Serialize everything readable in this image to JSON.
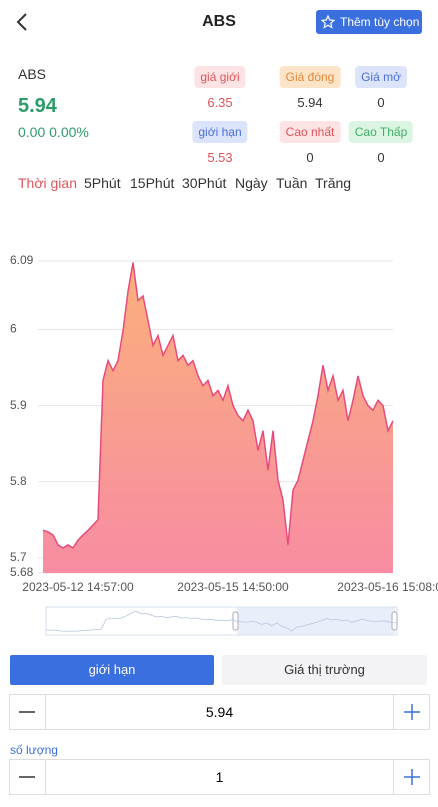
{
  "header": {
    "title": "ABS",
    "button": "Thêm tùy chọn"
  },
  "quote": {
    "symbol": "ABS",
    "last": 5.94,
    "change": "0.00 0.00%"
  },
  "stats": [
    {
      "label": "giá giới",
      "value": 6.35
    },
    {
      "label": "Giá đóng",
      "value": 5.94
    },
    {
      "label": "Giá mở",
      "value": 0
    },
    {
      "label": "giới hạn",
      "value": 5.53
    },
    {
      "label": "Cao nhất",
      "value": 0
    },
    {
      "label": "Cao Thấp",
      "value": 0
    }
  ],
  "timeframes": [
    "Thời gian",
    "5Phút",
    "15Phút",
    "30Phút",
    "Ngày",
    "Tuần",
    "Trăng"
  ],
  "chart_data": {
    "type": "area",
    "color": "#e94a7c",
    "categories": [
      null,
      null,
      null,
      null,
      null,
      null,
      null,
      "2023-05-12 14:57:00",
      null,
      null,
      null,
      null,
      null,
      null,
      null,
      null,
      null,
      null,
      null,
      null,
      null,
      null,
      null,
      null,
      null,
      null,
      null,
      null,
      null,
      null,
      null,
      null,
      null,
      null,
      null,
      null,
      null,
      null,
      "2023-05-15 14:50:00",
      null,
      null,
      null,
      null,
      null,
      null,
      null,
      null,
      null,
      null,
      null,
      null,
      null,
      null,
      null,
      null,
      null,
      null,
      null,
      null,
      null,
      null,
      null,
      null,
      null,
      null,
      null,
      null,
      null,
      null,
      null,
      "2023-05-16 15:08:00"
    ],
    "values": [
      5.736,
      5.734,
      5.73,
      5.717,
      5.713,
      5.717,
      5.713,
      5.723,
      5.73,
      5.736,
      5.743,
      5.75,
      5.933,
      5.959,
      5.946,
      5.959,
      5.998,
      6.05,
      6.088,
      6.038,
      6.044,
      6.012,
      5.979,
      5.992,
      5.966,
      5.979,
      5.992,
      5.959,
      5.966,
      5.953,
      5.959,
      5.939,
      5.926,
      5.933,
      5.913,
      5.92,
      5.907,
      5.926,
      5.9,
      5.887,
      5.88,
      5.894,
      5.88,
      5.841,
      5.867,
      5.815,
      5.867,
      5.802,
      5.776,
      5.717,
      5.789,
      5.802,
      5.828,
      5.854,
      5.88,
      5.913,
      5.953,
      5.92,
      5.939,
      5.907,
      5.92,
      5.88,
      5.907,
      5.939,
      5.913,
      5.9,
      5.894,
      5.907,
      5.9,
      5.867,
      5.88
    ],
    "ylim": [
      5.68,
      6.09
    ],
    "yticks": [
      5.68,
      5.7,
      5.8,
      5.9,
      6,
      6.09
    ],
    "grid": true
  },
  "order": {
    "tabs": [
      "giới hạn",
      "Giá thị trường"
    ],
    "price": 5.94,
    "quantity_label": "số lượng",
    "quantity": 1
  }
}
